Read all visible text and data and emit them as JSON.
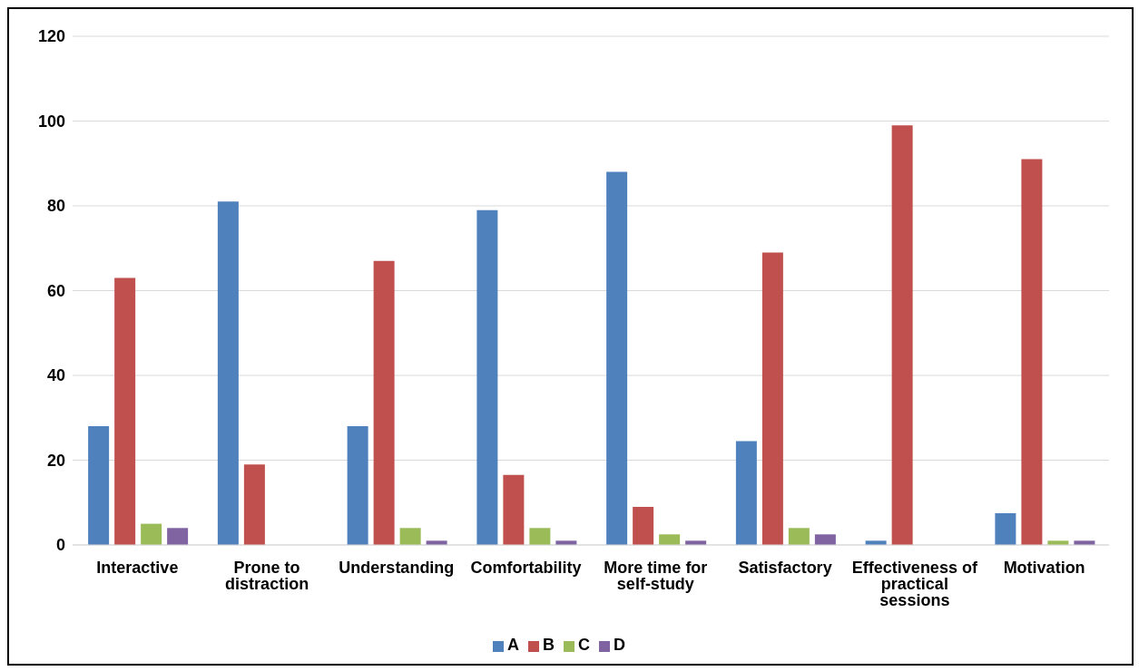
{
  "chart_data": {
    "type": "bar",
    "categories": [
      "Interactive",
      "Prone to distraction",
      "Understanding",
      "Comfortability",
      "More time for self-study",
      "Satisfactory",
      "Effectiveness of practical sessions",
      "Motivation"
    ],
    "series": [
      {
        "name": "A",
        "color": "#4f81bd",
        "values": [
          28,
          81,
          28,
          79,
          88,
          24.5,
          1,
          7.5
        ]
      },
      {
        "name": "B",
        "color": "#c0504d",
        "values": [
          63,
          19,
          67,
          16.5,
          9,
          69,
          99,
          91
        ]
      },
      {
        "name": "C",
        "color": "#9bbb59",
        "values": [
          5,
          0,
          4,
          4,
          2.5,
          4,
          0,
          1
        ]
      },
      {
        "name": "D",
        "color": "#8064a2",
        "values": [
          4,
          0,
          1,
          1,
          1,
          2.5,
          0,
          1
        ]
      }
    ],
    "ylim": [
      0,
      120
    ],
    "yticks": [
      0,
      20,
      40,
      60,
      80,
      100,
      120
    ],
    "grid": "y",
    "legend": "bottom"
  }
}
